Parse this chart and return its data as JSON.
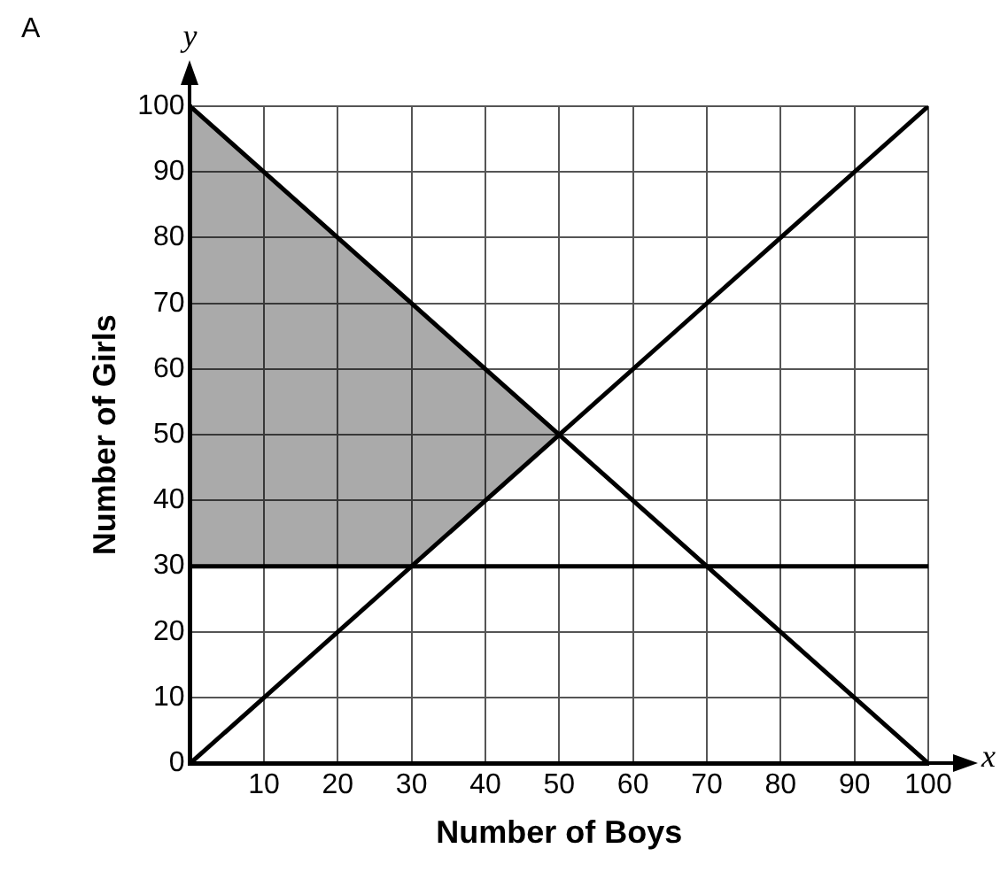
{
  "chart_data": {
    "type": "line",
    "xlabel": "Number of Boys",
    "ylabel": "Number of Girls",
    "annotations": [
      "A",
      "x",
      "y"
    ],
    "xlim": [
      0,
      100
    ],
    "ylim": [
      0,
      100
    ],
    "xticks": [
      {
        "value": 0,
        "label": null
      },
      10,
      20,
      30,
      40,
      50,
      60,
      70,
      80,
      90,
      100
    ],
    "yticks": [
      0,
      10,
      20,
      30,
      40,
      50,
      60,
      70,
      80,
      90,
      100
    ],
    "grid": true,
    "legend": false,
    "marker": "none",
    "line_style": "solid",
    "series": [
      {
        "type": "line",
        "color": "#000000",
        "x": [
          0,
          30,
          50,
          100
        ],
        "values": [
          100,
          70,
          50,
          0
        ],
        "lower": [
          30,
          30,
          50,
          null
        ],
        "upper": [
          100,
          70,
          50,
          null
        ]
      },
      {
        "type": "line",
        "color": "#000000",
        "x": [
          0,
          100
        ],
        "values": [
          0,
          100
        ]
      },
      {
        "type": "line",
        "color": "#000000",
        "x": [
          0,
          100
        ],
        "values": [
          30,
          30
        ]
      }
    ]
  }
}
